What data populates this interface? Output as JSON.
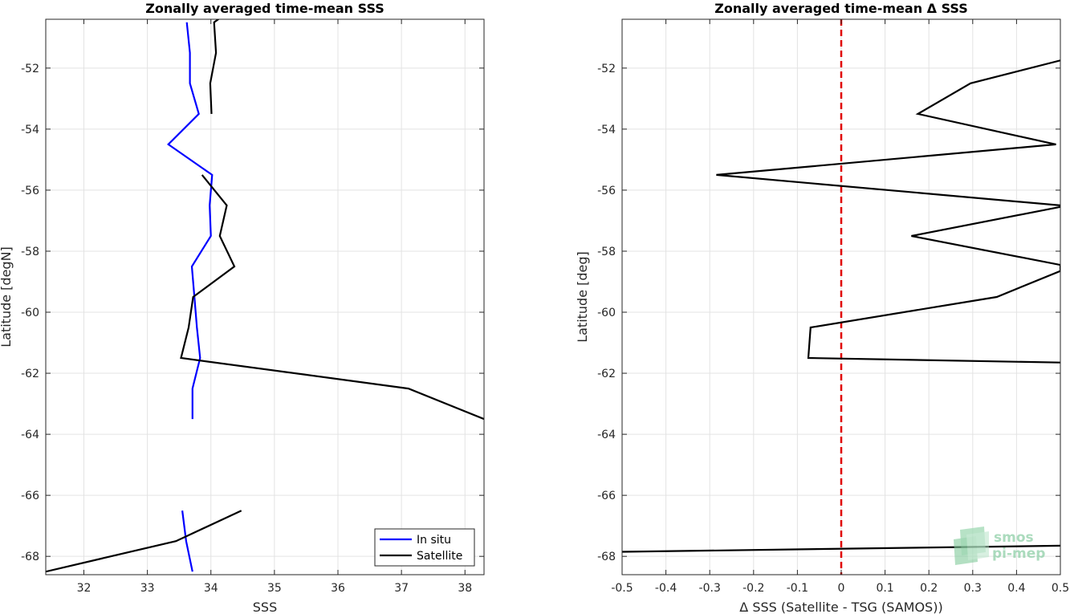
{
  "chart_data": [
    {
      "type": "line",
      "title": "Zonally averaged time-mean SSS",
      "xlabel": "SSS",
      "ylabel": "Latitude [degN]",
      "xlim": [
        31.4,
        38.3
      ],
      "ylim": [
        -68.6,
        -50.4
      ],
      "xticks": [
        32,
        33,
        34,
        35,
        36,
        37,
        38
      ],
      "yticks": [
        -68,
        -66,
        -64,
        -62,
        -60,
        -58,
        -56,
        -54,
        -52
      ],
      "grid": true,
      "legend_position": "bottom-right",
      "legend": [
        "In situ",
        "Satellite"
      ],
      "series": [
        {
          "name": "In situ",
          "color": "#0000ff",
          "segments": [
            [
              [
                33.62,
                -50.5
              ],
              [
                33.67,
                -51.5
              ],
              [
                33.67,
                -52.5
              ],
              [
                33.81,
                -53.5
              ],
              [
                33.33,
                -54.5
              ],
              [
                34.02,
                -55.5
              ],
              [
                33.98,
                -56.5
              ],
              [
                34.0,
                -57.5
              ],
              [
                33.7,
                -58.5
              ],
              [
                33.74,
                -59.5
              ],
              [
                33.78,
                -60.5
              ],
              [
                33.83,
                -61.5
              ],
              [
                33.71,
                -62.5
              ],
              [
                33.71,
                -63.5
              ]
            ],
            [
              [
                33.55,
                -66.5
              ],
              [
                33.61,
                -67.5
              ],
              [
                33.71,
                -68.5
              ]
            ]
          ]
        },
        {
          "name": "Satellite",
          "color": "#000000",
          "segments": [
            [
              [
                34.25,
                -50.2
              ],
              [
                34.05,
                -50.5
              ],
              [
                34.08,
                -51.5
              ],
              [
                33.99,
                -52.5
              ],
              [
                34.01,
                -53.5
              ]
            ],
            [
              [
                33.86,
                -55.5
              ],
              [
                34.25,
                -56.5
              ],
              [
                34.14,
                -57.5
              ],
              [
                34.37,
                -58.5
              ],
              [
                33.72,
                -59.5
              ],
              [
                33.65,
                -60.5
              ],
              [
                33.53,
                -61.5
              ],
              [
                37.11,
                -62.5
              ],
              [
                38.3,
                -63.5
              ]
            ],
            [
              [
                34.48,
                -66.5
              ],
              [
                33.45,
                -67.5
              ],
              [
                31.4,
                -68.5
              ]
            ]
          ]
        }
      ]
    },
    {
      "type": "line",
      "title": "Zonally averaged time-mean Δ SSS",
      "xlabel": "Δ SSS (Satellite - TSG (SAMOS))",
      "ylabel": "Latitude [deg]",
      "xlim": [
        -0.5,
        0.5
      ],
      "ylim": [
        -68.6,
        -50.4
      ],
      "xticks": [
        -0.5,
        -0.4,
        -0.3,
        -0.2,
        -0.1,
        0,
        0.1,
        0.2,
        0.3,
        0.4,
        0.5
      ],
      "yticks": [
        -68,
        -66,
        -64,
        -62,
        -60,
        -58,
        -56,
        -54,
        -52
      ],
      "grid": true,
      "series": [
        {
          "name": "",
          "color": "#000000",
          "segments": [
            [
              [
                0.5,
                -51.75
              ],
              [
                0.295,
                -52.5
              ],
              [
                0.175,
                -53.5
              ],
              [
                0.49,
                -54.5
              ],
              [
                -0.285,
                -55.5
              ],
              [
                0.5,
                -56.5
              ],
              [
                0.5,
                -56.55
              ],
              [
                0.16,
                -57.5
              ],
              [
                0.5,
                -58.45
              ],
              [
                0.5,
                -58.65
              ],
              [
                0.355,
                -59.5
              ],
              [
                -0.07,
                -60.5
              ],
              [
                -0.075,
                -61.5
              ],
              [
                0.5,
                -61.65
              ]
            ],
            [
              [
                -0.5,
                -67.85
              ],
              [
                0.5,
                -67.65
              ]
            ]
          ]
        }
      ],
      "reference_line": {
        "x": 0,
        "color": "#e00000",
        "style": "dashed"
      }
    }
  ],
  "watermark": {
    "line1": "smos",
    "line2": "pi-mep"
  }
}
